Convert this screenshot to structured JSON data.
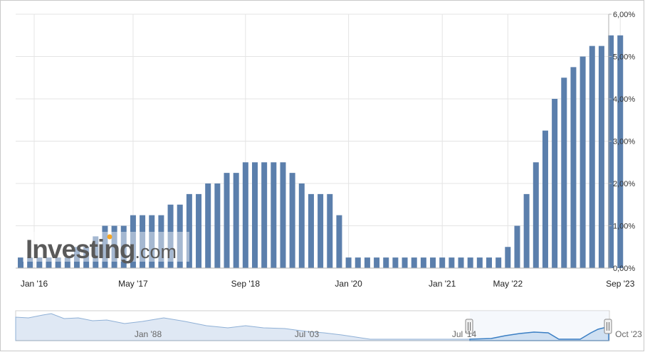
{
  "brand": {
    "logo_text": "Investing",
    "logo_suffix": ".com",
    "logo_dot_color": "#f6a623"
  },
  "colors": {
    "bar": "#5b7fac",
    "grid": "#e4e4e4",
    "axis": "#b0b0b0",
    "navigator_fill": "#dfe8f4",
    "navigator_line": "#8fb0d6",
    "navigator_line_active": "#3b7fc4"
  },
  "chart_data": {
    "type": "bar",
    "y_axis": {
      "position": "right",
      "min": 0,
      "max": 6,
      "ticks": [
        0,
        1,
        2,
        3,
        4,
        5,
        6
      ],
      "tick_labels": [
        "0,00%",
        "1,00%",
        "2,00%",
        "3,00%",
        "4,00%",
        "5,00%",
        "6,00%"
      ]
    },
    "x_tick_labels": [
      "Jan '16",
      "May '17",
      "Sep '18",
      "Jan '20",
      "Jan '21",
      "May '22",
      "Sep '23"
    ],
    "grid": true,
    "series": [
      {
        "values": [
          0.25,
          0.25,
          0.25,
          0.25,
          0.25,
          0.25,
          0.5,
          0.5,
          0.75,
          1.0,
          1.0,
          1.0,
          1.25,
          1.25,
          1.25,
          1.25,
          1.5,
          1.5,
          1.75,
          1.75,
          2.0,
          2.0,
          2.25,
          2.25,
          2.5,
          2.5,
          2.5,
          2.5,
          2.5,
          2.25,
          2.0,
          1.75,
          1.75,
          1.75,
          1.25,
          0.25,
          0.25,
          0.25,
          0.25,
          0.25,
          0.25,
          0.25,
          0.25,
          0.25,
          0.25,
          0.25,
          0.25,
          0.25,
          0.25,
          0.25,
          0.25,
          0.25,
          0.5,
          1.0,
          1.75,
          2.5,
          3.25,
          4.0,
          4.5,
          4.75,
          5.0,
          5.25,
          5.25,
          5.5,
          5.5
        ]
      }
    ]
  },
  "navigator": {
    "labels": [
      "Jan '88",
      "Jul '03",
      "Jul '14",
      "Oct '23"
    ]
  }
}
